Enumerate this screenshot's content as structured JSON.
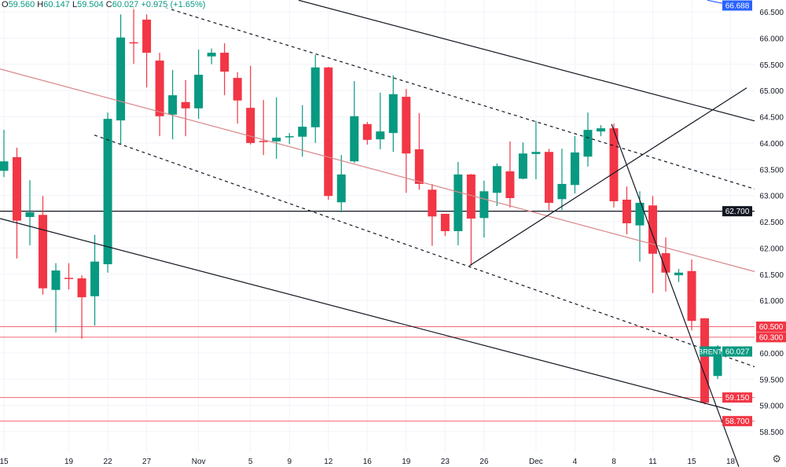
{
  "header": {
    "open_label": "O",
    "open": "59.560",
    "high_label": "H",
    "high": "60.147",
    "low_label": "L",
    "low": "59.504",
    "close_label": "C",
    "close": "60.027",
    "change": "+0.975 (+1.65%)"
  },
  "settings_icon": "gear-icon",
  "chart_data": {
    "type": "candlestick",
    "symbol": "BRENT",
    "colors": {
      "up": "#089981",
      "down": "#f23645",
      "grid": "#f0f3fa",
      "axis_text": "#131722"
    },
    "ylim": [
      58.19,
      66.72
    ],
    "xlim": [
      0.7,
      58.8
    ],
    "grid": true,
    "y_ticks": [
      "66.500",
      "66.000",
      "65.500",
      "65.000",
      "64.500",
      "64.000",
      "63.500",
      "63.000",
      "62.500",
      "62.000",
      "61.500",
      "61.000",
      "60.500",
      "60.000",
      "59.500",
      "59.000",
      "58.500"
    ],
    "x_ticks": [
      {
        "bar": 1,
        "label": "15"
      },
      {
        "bar": 6,
        "label": "19"
      },
      {
        "bar": 9,
        "label": "22"
      },
      {
        "bar": 12,
        "label": "27"
      },
      {
        "bar": 16,
        "label": "Nov"
      },
      {
        "bar": 20,
        "label": "5"
      },
      {
        "bar": 23,
        "label": "9"
      },
      {
        "bar": 26,
        "label": "12"
      },
      {
        "bar": 29,
        "label": "16"
      },
      {
        "bar": 32,
        "label": "19"
      },
      {
        "bar": 35,
        "label": "23"
      },
      {
        "bar": 38,
        "label": "26"
      },
      {
        "bar": 42,
        "label": "Dec"
      },
      {
        "bar": 45,
        "label": "4"
      },
      {
        "bar": 48,
        "label": "8"
      },
      {
        "bar": 51,
        "label": "11"
      },
      {
        "bar": 54,
        "label": "15"
      },
      {
        "bar": 57,
        "label": "18"
      }
    ],
    "ohlc": [
      [
        63.47,
        64.25,
        63.35,
        63.65
      ],
      [
        63.73,
        63.91,
        61.8,
        62.52
      ],
      [
        62.59,
        63.29,
        62.05,
        62.68
      ],
      [
        62.63,
        62.99,
        61.11,
        61.23
      ],
      [
        61.2,
        61.71,
        60.39,
        61.57
      ],
      [
        61.43,
        61.71,
        61.21,
        61.42
      ],
      [
        61.42,
        61.48,
        60.27,
        61.06
      ],
      [
        61.08,
        62.25,
        60.52,
        61.74
      ],
      [
        61.69,
        64.58,
        61.53,
        64.46
      ],
      [
        64.43,
        66.45,
        63.97,
        66.01
      ],
      [
        65.92,
        66.6,
        65.51,
        65.9
      ],
      [
        66.35,
        66.45,
        65.06,
        65.72
      ],
      [
        65.57,
        65.72,
        64.13,
        64.51
      ],
      [
        64.54,
        65.39,
        64.07,
        64.91
      ],
      [
        64.78,
        65.2,
        64.13,
        64.66
      ],
      [
        64.66,
        65.78,
        64.46,
        65.3
      ],
      [
        65.65,
        65.8,
        65.5,
        65.72
      ],
      [
        65.72,
        65.9,
        64.91,
        65.36
      ],
      [
        65.24,
        65.35,
        64.37,
        64.81
      ],
      [
        64.67,
        65.47,
        63.97,
        64.0
      ],
      [
        64.04,
        64.82,
        63.77,
        64.03
      ],
      [
        64.03,
        64.87,
        63.7,
        64.1
      ],
      [
        64.12,
        64.19,
        63.98,
        64.13
      ],
      [
        64.12,
        64.72,
        63.74,
        64.31
      ],
      [
        64.3,
        65.68,
        64.0,
        65.44
      ],
      [
        65.44,
        65.45,
        62.92,
        62.99
      ],
      [
        62.87,
        63.77,
        62.68,
        63.4
      ],
      [
        63.65,
        65.18,
        63.62,
        64.51
      ],
      [
        64.36,
        64.4,
        63.97,
        64.06
      ],
      [
        64.07,
        64.96,
        63.88,
        64.22
      ],
      [
        64.19,
        65.29,
        63.83,
        64.93
      ],
      [
        64.88,
        65.03,
        63.05,
        63.8
      ],
      [
        63.88,
        64.57,
        63.11,
        63.22
      ],
      [
        63.11,
        63.22,
        62.04,
        62.6
      ],
      [
        62.65,
        62.65,
        62.23,
        62.32
      ],
      [
        62.32,
        63.64,
        62.05,
        63.4
      ],
      [
        63.4,
        63.41,
        61.66,
        62.56
      ],
      [
        62.57,
        63.28,
        62.2,
        63.08
      ],
      [
        63.05,
        63.61,
        62.8,
        63.56
      ],
      [
        63.46,
        64.03,
        62.77,
        62.95
      ],
      [
        63.32,
        64.01,
        63.31,
        63.8
      ],
      [
        63.79,
        64.42,
        63.31,
        63.83
      ],
      [
        63.83,
        63.89,
        62.72,
        62.86
      ],
      [
        62.93,
        63.89,
        62.72,
        63.22
      ],
      [
        63.2,
        64.13,
        63.04,
        63.82
      ],
      [
        63.74,
        64.58,
        63.55,
        64.25
      ],
      [
        64.22,
        64.34,
        64.13,
        64.28
      ],
      [
        64.28,
        64.37,
        62.77,
        62.89
      ],
      [
        62.92,
        63.17,
        62.26,
        62.47
      ],
      [
        62.43,
        63.08,
        61.74,
        62.86
      ],
      [
        62.81,
        62.99,
        61.14,
        61.89
      ],
      [
        61.9,
        62.2,
        61.17,
        61.53
      ],
      [
        61.48,
        61.6,
        61.35,
        61.53
      ],
      [
        61.56,
        61.78,
        60.43,
        60.61
      ],
      [
        60.66,
        60.66,
        59.02,
        59.05
      ],
      [
        59.56,
        60.147,
        59.504,
        60.027
      ]
    ],
    "horizontal_levels": [
      {
        "price": 62.7,
        "label": "62.700",
        "color": "#131722"
      },
      {
        "price": 60.5,
        "label": "60.500",
        "color": "#f23645"
      },
      {
        "price": 60.3,
        "label": "60.300",
        "color": "#f23645"
      },
      {
        "price": 59.15,
        "label": "59.150",
        "color": "#f23645"
      },
      {
        "price": 58.7,
        "label": "58.700",
        "color": "#f23645"
      }
    ],
    "top_marker": {
      "label": "66.688",
      "color": "#2962ff"
    },
    "last_price": {
      "name": "BRENT",
      "label": "60.027",
      "color": "#089981"
    },
    "trendlines": [
      {
        "from": [
          0.7,
          65.41
        ],
        "to": [
          59.15,
          61.53
        ],
        "color": "#d9878a",
        "style": "solid"
      },
      {
        "from": [
          23.71,
          66.72
        ],
        "to": [
          59.15,
          64.4
        ],
        "color": "#131722",
        "style": "solid"
      },
      {
        "from": [
          0.7,
          62.56
        ],
        "to": [
          57.03,
          58.91
        ],
        "color": "#131722",
        "style": "solid"
      },
      {
        "from": [
          12.51,
          66.65
        ],
        "to": [
          59.15,
          63.1
        ],
        "color": "#131722",
        "style": "dashed"
      },
      {
        "from": [
          7.97,
          64.15
        ],
        "to": [
          59.15,
          59.71
        ],
        "color": "#131722",
        "style": "dashed"
      },
      {
        "from": [
          36.86,
          61.66
        ],
        "to": [
          58.24,
          65.05
        ],
        "color": "#131722",
        "style": "solid"
      },
      {
        "from": [
          47.82,
          64.36
        ],
        "to": [
          57.63,
          57.83
        ],
        "color": "#131722",
        "style": "solid"
      },
      {
        "from": [
          55.2,
          66.72
        ],
        "to": [
          57.6,
          66.6
        ],
        "color": "#2962ff",
        "style": "solid"
      }
    ]
  }
}
